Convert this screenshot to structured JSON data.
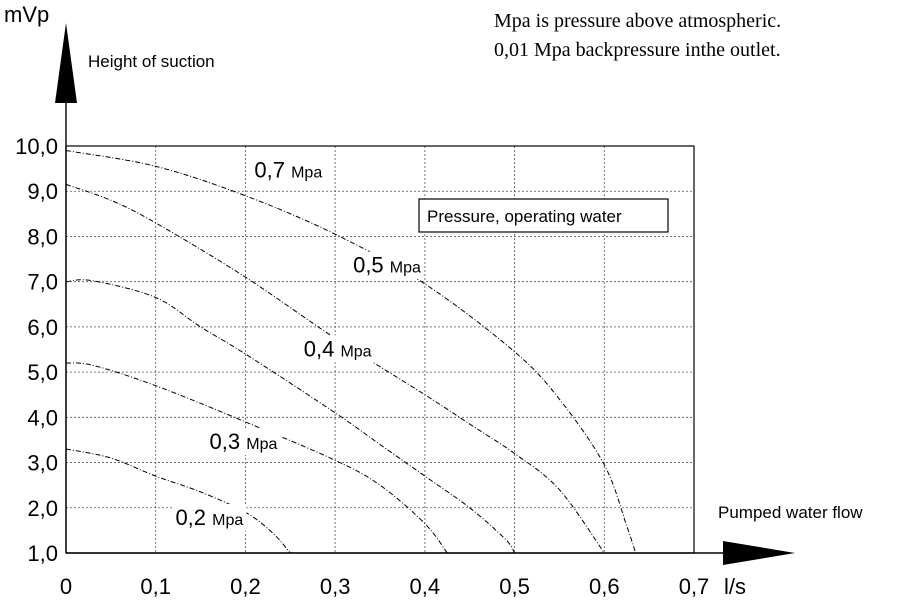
{
  "chart_data": {
    "type": "line",
    "y_unit": "mVp",
    "ylabel": "Height of suction",
    "xlabel": "Pumped water flow",
    "x_unit": "l/s",
    "notes": [
      "Mpa is pressure above atmospheric.",
      "0,01 Mpa backpressure inthe outlet."
    ],
    "legend_box": "Pressure, operating water",
    "xlim": [
      0,
      0.7
    ],
    "ylim": [
      1.0,
      10.0
    ],
    "x_ticks": [
      {
        "v": 0,
        "label": "0"
      },
      {
        "v": 0.1,
        "label": "0,1"
      },
      {
        "v": 0.2,
        "label": "0,2"
      },
      {
        "v": 0.3,
        "label": "0,3"
      },
      {
        "v": 0.4,
        "label": "0,4"
      },
      {
        "v": 0.5,
        "label": "0,5"
      },
      {
        "v": 0.6,
        "label": "0,6"
      },
      {
        "v": 0.7,
        "label": "0,7"
      }
    ],
    "y_ticks": [
      {
        "v": 1,
        "label": "1,0"
      },
      {
        "v": 2,
        "label": "2,0"
      },
      {
        "v": 3,
        "label": "3,0"
      },
      {
        "v": 4,
        "label": "4,0"
      },
      {
        "v": 5,
        "label": "5,0"
      },
      {
        "v": 6,
        "label": "6,0"
      },
      {
        "v": 7,
        "label": "7,0"
      },
      {
        "v": 8,
        "label": "8,0"
      },
      {
        "v": 9,
        "label": "9,0"
      },
      {
        "v": 10,
        "label": "10,0"
      }
    ],
    "grid": true,
    "series": [
      {
        "id": "p07",
        "value": "0,7",
        "unit": "Mpa",
        "label_at": [
          0.21,
          9.3
        ],
        "points": [
          [
            0,
            9.9
          ],
          [
            0.1,
            9.55
          ],
          [
            0.2,
            8.9
          ],
          [
            0.3,
            8.05
          ],
          [
            0.4,
            6.95
          ],
          [
            0.5,
            5.45
          ],
          [
            0.55,
            4.4
          ],
          [
            0.6,
            2.95
          ],
          [
            0.625,
            1.6
          ],
          [
            0.635,
            1.0
          ]
        ]
      },
      {
        "id": "p05",
        "value": "0,5",
        "unit": "Mpa",
        "label_at": [
          0.32,
          7.2
        ],
        "points": [
          [
            0,
            9.15
          ],
          [
            0.05,
            8.8
          ],
          [
            0.1,
            8.3
          ],
          [
            0.2,
            7.1
          ],
          [
            0.3,
            5.75
          ],
          [
            0.4,
            4.5
          ],
          [
            0.45,
            3.85
          ],
          [
            0.5,
            3.2
          ],
          [
            0.55,
            2.4
          ],
          [
            0.6,
            1.0
          ]
        ]
      },
      {
        "id": "p04",
        "value": "0,4",
        "unit": "Mpa",
        "label_at": [
          0.265,
          5.35
        ],
        "points": [
          [
            0,
            7.0
          ],
          [
            0.03,
            7.02
          ],
          [
            0.1,
            6.65
          ],
          [
            0.15,
            6.0
          ],
          [
            0.2,
            5.4
          ],
          [
            0.3,
            4.1
          ],
          [
            0.35,
            3.4
          ],
          [
            0.4,
            2.7
          ],
          [
            0.45,
            2.0
          ],
          [
            0.49,
            1.3
          ],
          [
            0.5,
            1.0
          ]
        ]
      },
      {
        "id": "p03",
        "value": "0,3",
        "unit": "Mpa",
        "label_at": [
          0.16,
          3.3
        ],
        "points": [
          [
            0,
            5.2
          ],
          [
            0.03,
            5.15
          ],
          [
            0.1,
            4.7
          ],
          [
            0.2,
            3.9
          ],
          [
            0.3,
            3.05
          ],
          [
            0.35,
            2.5
          ],
          [
            0.4,
            1.65
          ],
          [
            0.425,
            1.0
          ]
        ]
      },
      {
        "id": "p02",
        "value": "0,2",
        "unit": "Mpa",
        "label_at": [
          0.122,
          1.62
        ],
        "points": [
          [
            0,
            3.3
          ],
          [
            0.05,
            3.1
          ],
          [
            0.1,
            2.7
          ],
          [
            0.15,
            2.35
          ],
          [
            0.2,
            1.9
          ],
          [
            0.23,
            1.45
          ],
          [
            0.25,
            1.0
          ]
        ]
      }
    ]
  }
}
